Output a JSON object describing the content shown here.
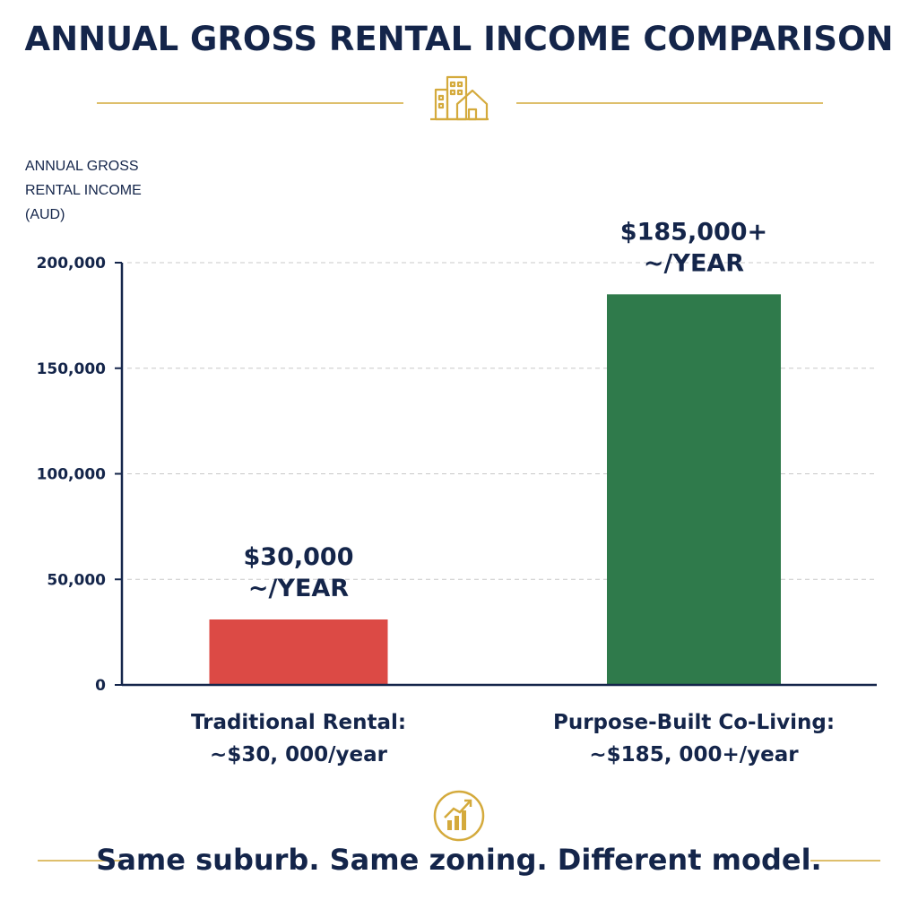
{
  "title": "ANNUAL GROSS RENTAL INCOME COMPARISON",
  "tagline": "Same suburb. Same zoning. Different model.",
  "colors": {
    "navy": "#14254a",
    "gold": "#d4aa3c",
    "red": "#dc4a45",
    "green": "#2f7a4b",
    "grid": "#c8c8c8"
  },
  "icons": {
    "header": "buildings-house-icon",
    "footer": "growth-chart-icon"
  },
  "chart_data": {
    "type": "bar",
    "ylabel": "ANNUAL GROSS\nRENTAL INCOME\n(AUD)",
    "ylim": [
      0,
      200000
    ],
    "yticks": [
      0,
      50000,
      100000,
      150000,
      200000
    ],
    "ytick_labels": [
      "0",
      "50,000",
      "100,000",
      "150,000",
      "200,000"
    ],
    "grid": true,
    "categories": [
      "Traditional Rental:\n~$30, 000/year",
      "Purpose-Built Co-Living:\n~$185, 000+/year"
    ],
    "values": [
      31000,
      185000
    ],
    "bar_labels": [
      "$30,000\n~/YEAR",
      "$185,000+\n~/YEAR"
    ],
    "bar_colors": [
      "#dc4a45",
      "#2f7a4b"
    ]
  }
}
